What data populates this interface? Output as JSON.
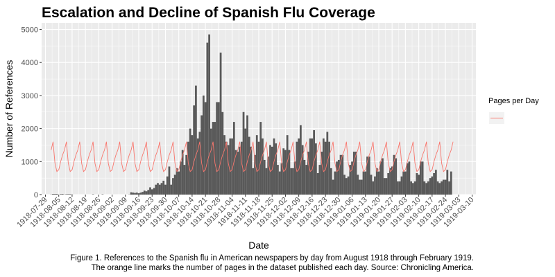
{
  "chart_data": {
    "type": "bar",
    "title": "Escalation and Decline of Spanish Flu Coverage",
    "xlabel": "Date",
    "ylabel": "Number of References",
    "ylim": [
      0,
      5200
    ],
    "yticks": [
      0,
      1000,
      2000,
      3000,
      4000,
      5000
    ],
    "xlim": [
      "1918-07-27",
      "1919-03-12"
    ],
    "x_ticks": [
      "1918-07-29",
      "1918-08-05",
      "1918-08-12",
      "1918-08-19",
      "1918-08-26",
      "1918-09-02",
      "1918-09-09",
      "1918-09-16",
      "1918-09-23",
      "1918-09-30",
      "1918-10-07",
      "1918-10-14",
      "1918-10-21",
      "1918-10-28",
      "1918-11-04",
      "1918-11-11",
      "1918-11-18",
      "1918-11-25",
      "1918-12-02",
      "1918-12-09",
      "1918-12-16",
      "1918-12-23",
      "1918-12-30",
      "1919-01-06",
      "1919-01-13",
      "1919-01-20",
      "1919-01-27",
      "1919-02-03",
      "1919-02-10",
      "1919-02-17",
      "1919-02-24",
      "1919-03-03",
      "1919-03-10"
    ],
    "grid": true,
    "legend": {
      "title": "Pages per Day",
      "placement": "right"
    },
    "series": [
      {
        "type": "bar",
        "color": "#595959",
        "start_date": "1918-08-01",
        "values": [
          5,
          20,
          18,
          20,
          0,
          15,
          18,
          5,
          12,
          14,
          14,
          5,
          0,
          0,
          0,
          0,
          0,
          0,
          0,
          0,
          0,
          0,
          10,
          0,
          0,
          0,
          0,
          10,
          0,
          0,
          0,
          0,
          0,
          0,
          0,
          0,
          0,
          0,
          0,
          0,
          0,
          5,
          70,
          60,
          50,
          60,
          40,
          60,
          80,
          120,
          100,
          140,
          220,
          160,
          200,
          300,
          350,
          300,
          350,
          420,
          300,
          550,
          850,
          300,
          500,
          600,
          800,
          700,
          1000,
          1350,
          900,
          1200,
          1600,
          2000,
          1800,
          2700,
          3300,
          1700,
          1900,
          2400,
          3000,
          2800,
          4600,
          4850,
          2000,
          2200,
          2200,
          2800,
          2800,
          4300,
          2500,
          1800,
          1600,
          1500,
          1700,
          1700,
          2200,
          1350,
          1300,
          1450,
          1600,
          2500,
          2000,
          2400,
          1750,
          1450,
          800,
          1200,
          1800,
          1600,
          2200,
          1700,
          1050,
          800,
          1150,
          1500,
          1450,
          1700,
          1550,
          900,
          700,
          950,
          1400,
          1350,
          1800,
          1350,
          800,
          800,
          1000,
          1600,
          1700,
          2100,
          1500,
          1050,
          900,
          1300,
          1700,
          1700,
          1950,
          1550,
          650,
          900,
          1300,
          1700,
          1600,
          1900,
          1600,
          800,
          450,
          700,
          1000,
          1050,
          1200,
          1200,
          600,
          500,
          550,
          900,
          1000,
          1300,
          1300,
          600,
          450,
          450,
          700,
          700,
          1150,
          1150,
          600,
          400,
          550,
          800,
          700,
          1000,
          1100,
          500,
          500,
          650,
          800,
          850,
          1200,
          1100,
          400,
          400,
          550,
          700,
          700,
          950,
          1000,
          400,
          350,
          400,
          650,
          600,
          1000,
          1000,
          400,
          350,
          400,
          500,
          550,
          650,
          750,
          400,
          350,
          400,
          450,
          450,
          750,
          400,
          700
        ]
      },
      {
        "type": "line",
        "name": "Pages per Day",
        "color": "#f8766d",
        "start_date": "1918-08-01",
        "weekly_pattern": [
          1350,
          1600,
          950,
          700,
          750,
          1000,
          1200
        ],
        "end_date": "1919-02-28"
      }
    ]
  },
  "caption": {
    "line1": "Figure 1. References to the Spanish flu in American newspapers by day from August 1918 through February 1919.",
    "line2": "The orange line marks the number of pages in the dataset published each day. Source: Chronicling America."
  }
}
